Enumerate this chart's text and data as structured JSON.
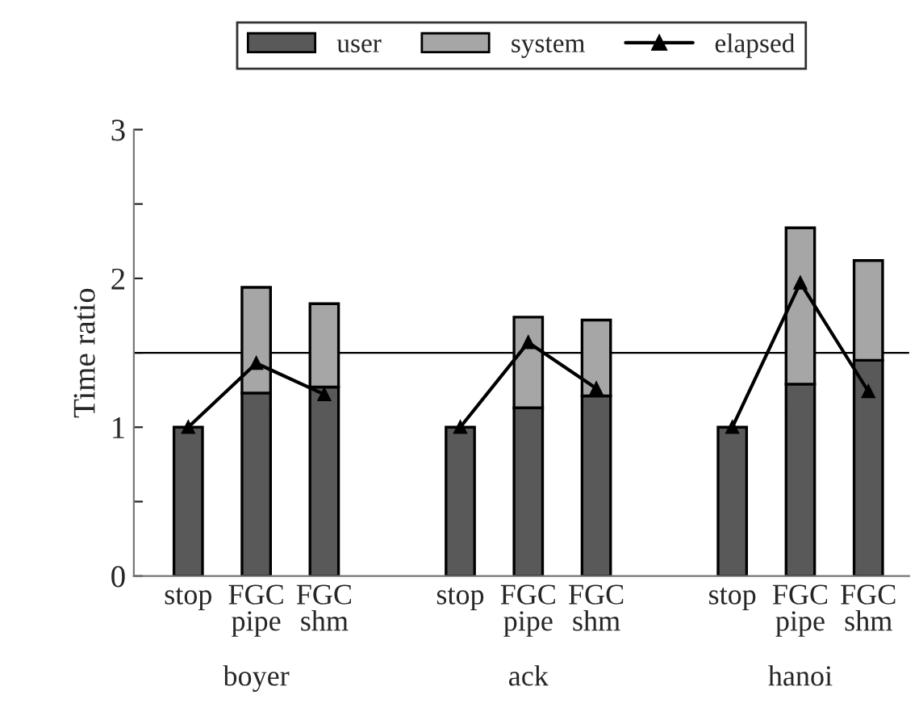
{
  "chart_data": {
    "type": "bar",
    "stacked": true,
    "ylabel": "Time ratio",
    "categories": [
      "stop",
      "FGC\npipe",
      "FGC\nshm",
      null,
      "stop",
      "FGC\npipe",
      "FGC\nshm",
      null,
      "stop",
      "FGC\npipe",
      "FGC\nshm"
    ],
    "series": [
      {
        "name": "user",
        "color": "#595959",
        "values": [
          1.0,
          1.23,
          1.27,
          null,
          1.0,
          1.13,
          1.21,
          null,
          1.0,
          1.29,
          1.45
        ]
      },
      {
        "name": "system",
        "color": "#a6a6a6",
        "values": [
          null,
          0.71,
          0.56,
          null,
          null,
          0.61,
          0.51,
          null,
          null,
          1.05,
          0.67
        ]
      },
      {
        "name": "elapsed",
        "type": "line",
        "color": "#000000",
        "marker": "triangle",
        "values": [
          1.0,
          1.43,
          1.22,
          null,
          1.0,
          1.57,
          1.26,
          null,
          1.0,
          1.97,
          1.24
        ]
      }
    ],
    "ylim": [
      0,
      3
    ],
    "yticks": [
      0,
      {
        "value": 0.5,
        "label": null
      },
      1,
      {
        "value": 1.5,
        "label": null
      },
      2,
      {
        "value": 2.5,
        "label": null
      },
      3
    ],
    "ref_lines": [
      {
        "axis": "y",
        "value": 1.5,
        "color": "#000000"
      }
    ],
    "annotations": [
      "boyer",
      "ack",
      "hanoi"
    ],
    "legend": "top",
    "grid": false
  }
}
